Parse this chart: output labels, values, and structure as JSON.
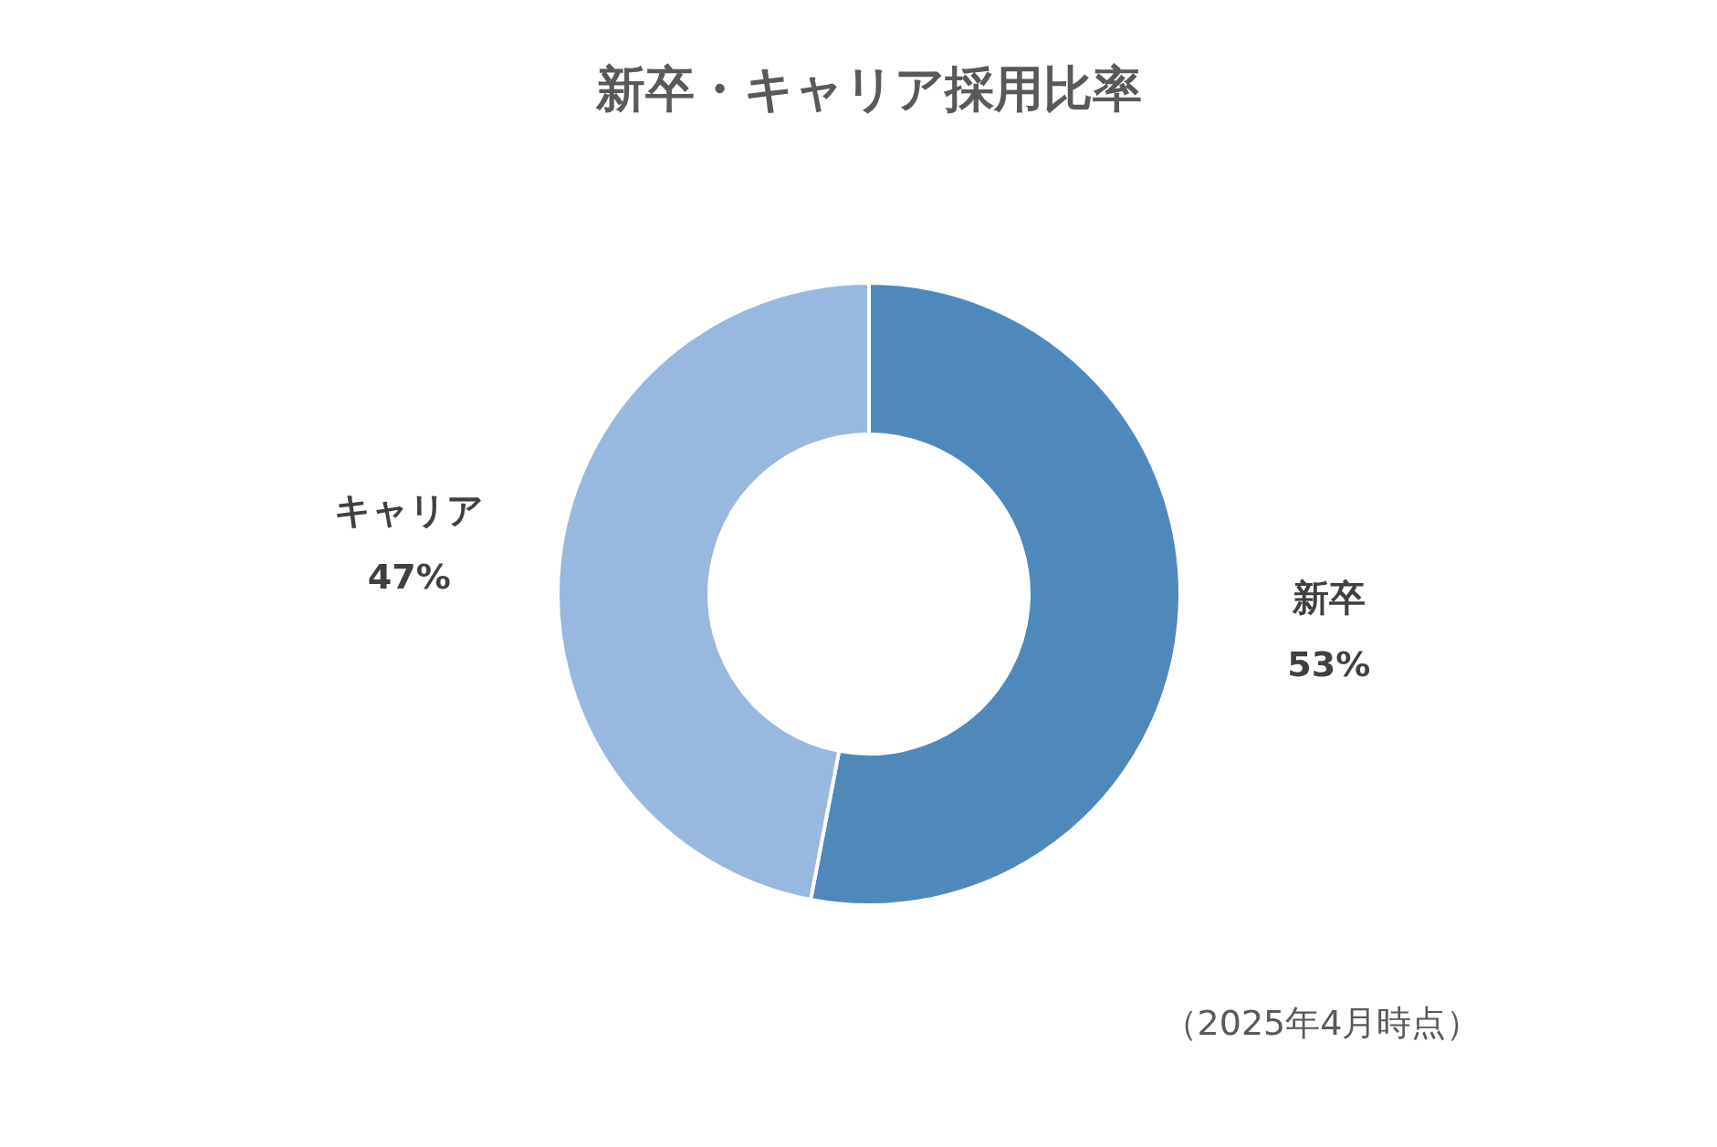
{
  "chart_data": {
    "type": "donut",
    "title": "新卒・キャリア採用比率",
    "categories": [
      "新卒",
      "キャリア"
    ],
    "values": [
      53,
      47
    ],
    "value_labels": [
      "53%",
      "47%"
    ],
    "colors": [
      "#4f89bc",
      "#99b8df"
    ],
    "annotations": [
      "（2025年4月時点）"
    ]
  }
}
